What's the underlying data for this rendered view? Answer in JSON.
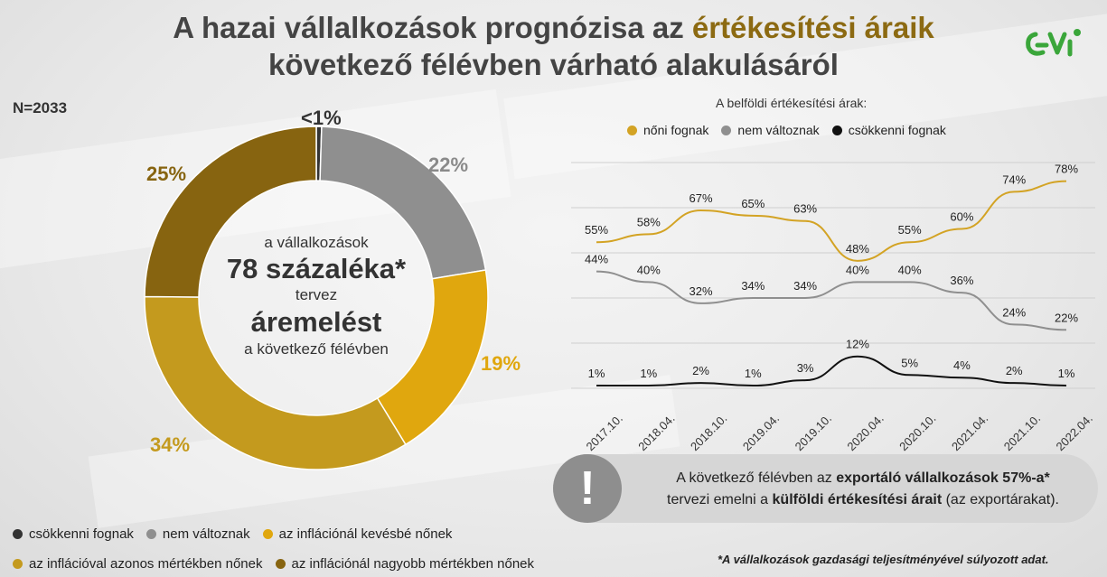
{
  "title": {
    "line1_a": "A hazai vállalkozások prognózisa az ",
    "line1_highlight": "értékesítési áraik",
    "line2": "következő félévben várható alakulásáról"
  },
  "logo": {
    "text": "GVI",
    "color": "#3aa63a"
  },
  "sample": "N=2033",
  "donut": {
    "center": {
      "line1": "a vállalkozások",
      "line2": "78 százaléka*",
      "line3": "tervez",
      "line4": "áremelést",
      "line5": "a következő félévben"
    },
    "legend": [
      {
        "label": "csökkenni fognak",
        "color": "#333333"
      },
      {
        "label": "nem változnak",
        "color": "#8f8f8f"
      },
      {
        "label": "az inflációnál kevésbé nőnek",
        "color": "#e0a70e"
      },
      {
        "label": "az inflációval azonos mértékben nőnek",
        "color": "#c49a1e"
      },
      {
        "label": "az inflációnál nagyobb mértékben nőnek",
        "color": "#876410"
      }
    ]
  },
  "line_header": "A belföldi értékesítési árak:",
  "line_legend": [
    {
      "label": "nőni fognak",
      "color": "#d3a324"
    },
    {
      "label": "nem változnak",
      "color": "#8f8f8f"
    },
    {
      "label": "csökkenni fognak",
      "color": "#111111"
    }
  ],
  "note": {
    "part1": "A következő félévben az ",
    "bold1": "exportáló vállalkozások 57%-a*",
    "part2": "tervezi emelni a ",
    "bold2": "külföldi értékesítési árait",
    "part3": " (az exportárakat).",
    "icon": "exclamation-icon"
  },
  "footnote": "*A vállalkozások gazdasági teljesítményével súlyozott adat.",
  "chart_data": [
    {
      "type": "pie",
      "categories": [
        "csökkenni fognak",
        "nem változnak",
        "az inflációnál kevésbé nőnek",
        "az inflációval azonos mértékben nőnek",
        "az inflációnál nagyobb mértékben nőnek"
      ],
      "values": [
        0.5,
        22,
        19,
        34,
        25
      ],
      "labels": [
        "<1%",
        "22%",
        "19%",
        "34%",
        "25%"
      ],
      "colors": [
        "#333333",
        "#8f8f8f",
        "#e0a70e",
        "#c49a1e",
        "#876410"
      ]
    },
    {
      "type": "line",
      "x": [
        "2017.10.",
        "2018.04.",
        "2018.10.",
        "2019.04.",
        "2019.10.",
        "2020.04.",
        "2020.10.",
        "2021.04.",
        "2021.10.",
        "2022.04."
      ],
      "series": [
        {
          "name": "nőni fognak",
          "values": [
            55,
            58,
            67,
            65,
            63,
            48,
            55,
            60,
            74,
            78
          ],
          "color": "#d3a324"
        },
        {
          "name": "nem változnak",
          "values": [
            44,
            40,
            32,
            34,
            34,
            40,
            40,
            36,
            24,
            22
          ],
          "color": "#8f8f8f"
        },
        {
          "name": "csökkenni fognak",
          "values": [
            1,
            1,
            2,
            1,
            3,
            12,
            5,
            4,
            2,
            1
          ],
          "color": "#111111"
        }
      ],
      "ylim": [
        0,
        85
      ],
      "grid": true,
      "legend": "top"
    }
  ]
}
